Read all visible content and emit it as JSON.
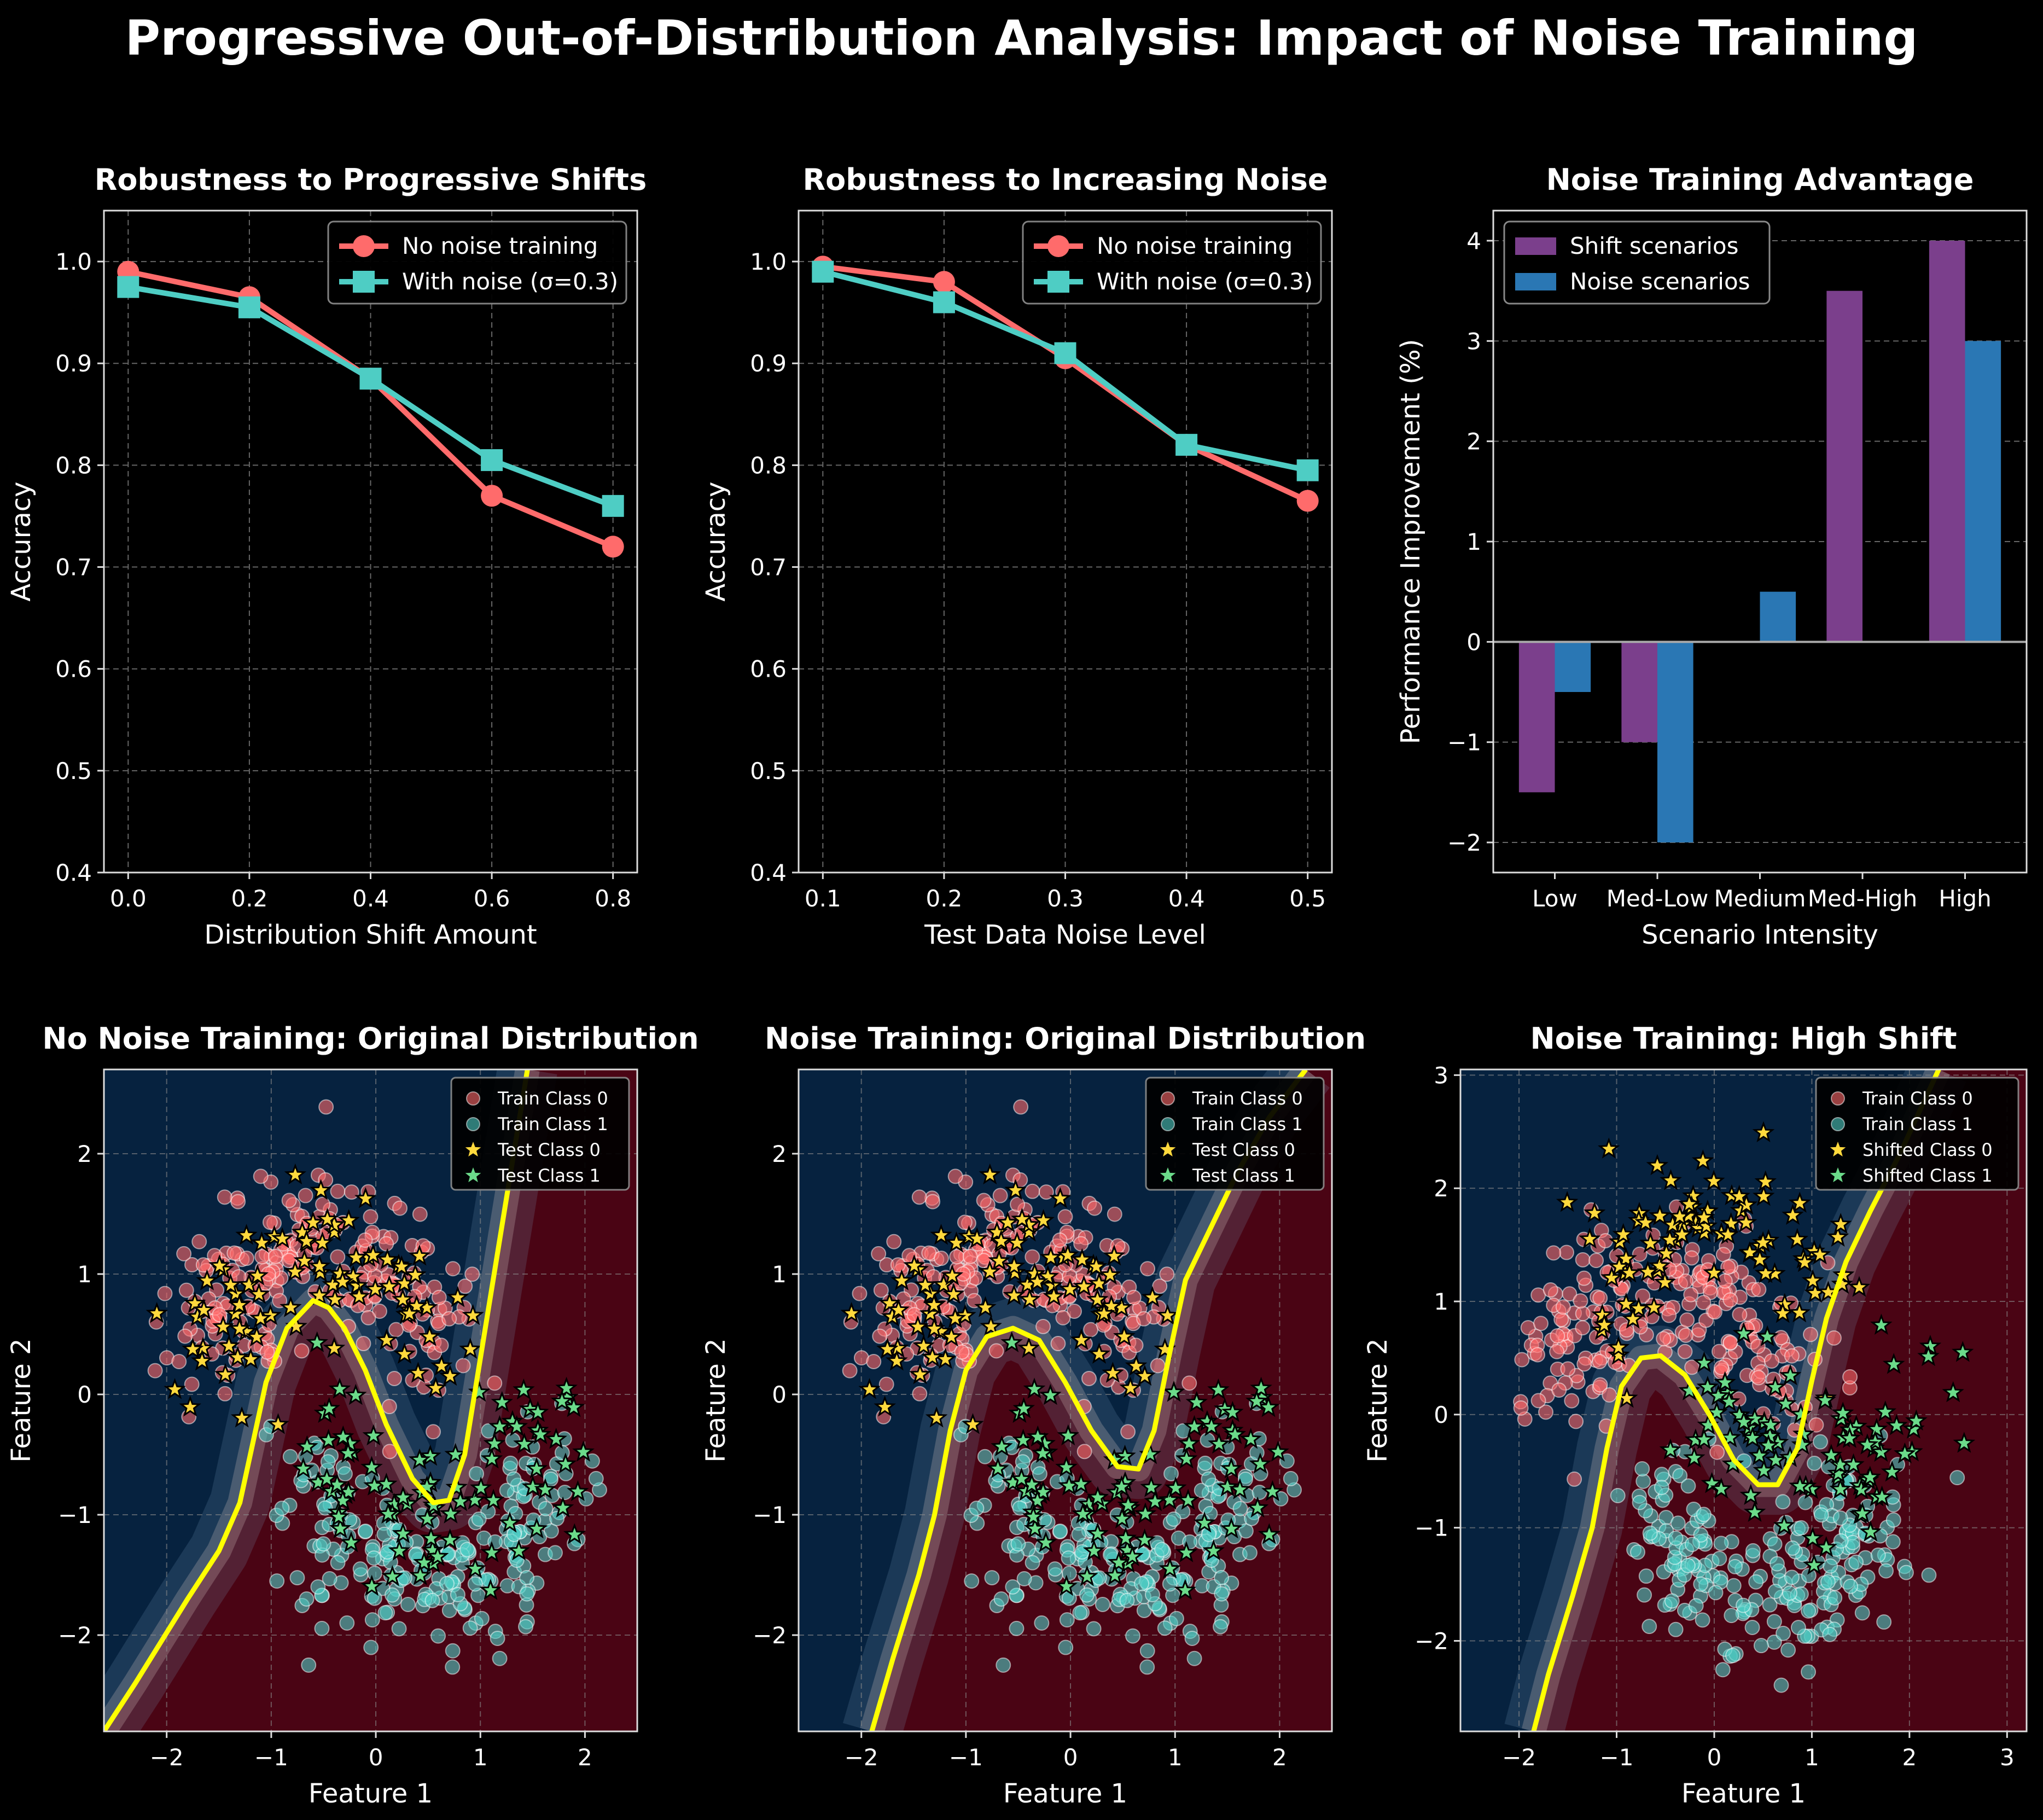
{
  "suptitle": "Progressive Out-of-Distribution Analysis: Impact of Noise Training",
  "colors": {
    "background": "#000000",
    "no_noise": "#ff6b6b",
    "with_noise": "#4ecdc4",
    "shift_bars": "#7b3f8c",
    "noise_bars": "#2a77b4",
    "region_class0": "#06223f",
    "region_class1": "#4a0414",
    "boundary": "#ffff00",
    "test_class0": "#ffd93d",
    "test_class1": "#6bdb8a"
  },
  "chart_data": [
    {
      "type": "line",
      "title": "Robustness to Progressive Shifts",
      "xlabel": "Distribution Shift Amount",
      "ylabel": "Accuracy",
      "xlim": [
        -0.04,
        0.84
      ],
      "ylim": [
        0.4,
        1.05
      ],
      "x_ticks": [
        "0.0",
        "0.2",
        "0.4",
        "0.6",
        "0.8"
      ],
      "y_ticks": [
        "0.4",
        "0.5",
        "0.6",
        "0.7",
        "0.8",
        "0.9",
        "1.0"
      ],
      "grid": true,
      "legend": "top-right",
      "x": [
        0.0,
        0.2,
        0.4,
        0.6,
        0.8
      ],
      "series": [
        {
          "name": "No noise training",
          "marker": "circle",
          "values": [
            0.99,
            0.965,
            0.885,
            0.77,
            0.72
          ]
        },
        {
          "name": "With noise (σ=0.3)",
          "marker": "square",
          "values": [
            0.975,
            0.955,
            0.885,
            0.805,
            0.76
          ]
        }
      ]
    },
    {
      "type": "line",
      "title": "Robustness to Increasing Noise",
      "xlabel": "Test Data Noise Level",
      "ylabel": "Accuracy",
      "xlim": [
        0.08,
        0.52
      ],
      "ylim": [
        0.4,
        1.05
      ],
      "x_ticks": [
        "0.1",
        "0.2",
        "0.3",
        "0.4",
        "0.5"
      ],
      "y_ticks": [
        "0.4",
        "0.5",
        "0.6",
        "0.7",
        "0.8",
        "0.9",
        "1.0"
      ],
      "grid": true,
      "legend": "top-right",
      "x": [
        0.1,
        0.2,
        0.3,
        0.4,
        0.5
      ],
      "series": [
        {
          "name": "No noise training",
          "marker": "circle",
          "values": [
            0.995,
            0.98,
            0.905,
            0.82,
            0.765
          ]
        },
        {
          "name": "With noise (σ=0.3)",
          "marker": "square",
          "values": [
            0.99,
            0.96,
            0.91,
            0.82,
            0.795
          ]
        }
      ]
    },
    {
      "type": "bar",
      "title": "Noise Training Advantage",
      "xlabel": "Scenario Intensity",
      "ylabel": "Performance Improvement (%)",
      "ylim": [
        -2.3,
        4.3
      ],
      "y_ticks": [
        "−2",
        "−1",
        "0",
        "1",
        "2",
        "3",
        "4"
      ],
      "grid": true,
      "legend": "top-left",
      "categories": [
        "Low",
        "Med-Low",
        "Medium",
        "Med-High",
        "High"
      ],
      "series": [
        {
          "name": "Shift scenarios",
          "values": [
            -1.5,
            -1.0,
            0.0,
            3.5,
            4.0
          ]
        },
        {
          "name": "Noise scenarios",
          "values": [
            -0.5,
            -2.0,
            0.5,
            0.0,
            3.0
          ]
        }
      ]
    },
    {
      "type": "scatter",
      "title": "No Noise Training: Original Distribution",
      "xlabel": "Feature 1",
      "ylabel": "Feature 2",
      "xlim": [
        -2.6,
        2.5
      ],
      "ylim": [
        -2.8,
        2.7
      ],
      "x_ticks": [
        "−2",
        "−1",
        "0",
        "1",
        "2"
      ],
      "y_ticks": [
        "−2",
        "−1",
        "0",
        "1",
        "2"
      ],
      "grid": true,
      "legend": "top-right",
      "legend_entries": [
        "Train Class 0",
        "Train Class 1",
        "Test Class 0",
        "Test Class 1"
      ],
      "decision_boundary": [
        [
          -2.6,
          -2.8
        ],
        [
          -2.3,
          -2.4
        ],
        [
          -1.8,
          -1.7
        ],
        [
          -1.5,
          -1.3
        ],
        [
          -1.3,
          -0.9
        ],
        [
          -1.2,
          -0.5
        ],
        [
          -1.05,
          0.1
        ],
        [
          -0.85,
          0.55
        ],
        [
          -0.6,
          0.78
        ],
        [
          -0.45,
          0.72
        ],
        [
          -0.3,
          0.55
        ],
        [
          -0.1,
          0.2
        ],
        [
          0.1,
          -0.25
        ],
        [
          0.35,
          -0.7
        ],
        [
          0.55,
          -0.9
        ],
        [
          0.7,
          -0.88
        ],
        [
          0.85,
          -0.5
        ],
        [
          1.0,
          0.3
        ],
        [
          1.15,
          1.1
        ],
        [
          1.3,
          1.9
        ],
        [
          1.45,
          2.7
        ]
      ]
    },
    {
      "type": "scatter",
      "title": "Noise Training: Original Distribution",
      "xlabel": "Feature 1",
      "ylabel": "Feature 2",
      "xlim": [
        -2.6,
        2.5
      ],
      "ylim": [
        -2.8,
        2.7
      ],
      "x_ticks": [
        "−2",
        "−1",
        "0",
        "1",
        "2"
      ],
      "y_ticks": [
        "−2",
        "−1",
        "0",
        "1",
        "2"
      ],
      "grid": true,
      "legend": "top-right",
      "legend_entries": [
        "Train Class 0",
        "Train Class 1",
        "Test Class 0",
        "Test Class 1"
      ],
      "decision_boundary": [
        [
          -1.9,
          -2.8
        ],
        [
          -1.7,
          -2.2
        ],
        [
          -1.45,
          -1.5
        ],
        [
          -1.3,
          -1.0
        ],
        [
          -1.15,
          -0.3
        ],
        [
          -1.0,
          0.2
        ],
        [
          -0.8,
          0.48
        ],
        [
          -0.55,
          0.55
        ],
        [
          -0.3,
          0.45
        ],
        [
          -0.05,
          0.1
        ],
        [
          0.2,
          -0.3
        ],
        [
          0.45,
          -0.6
        ],
        [
          0.65,
          -0.62
        ],
        [
          0.8,
          -0.3
        ],
        [
          0.95,
          0.35
        ],
        [
          1.1,
          0.95
        ],
        [
          1.35,
          1.4
        ],
        [
          1.6,
          1.85
        ],
        [
          1.9,
          2.3
        ],
        [
          2.25,
          2.7
        ]
      ]
    },
    {
      "type": "scatter",
      "title": "Noise Training: High Shift",
      "xlabel": "Feature 1",
      "ylabel": "Feature 2",
      "xlim": [
        -2.6,
        3.2
      ],
      "ylim": [
        -2.8,
        3.05
      ],
      "x_ticks": [
        "−2",
        "−1",
        "0",
        "1",
        "2",
        "3"
      ],
      "y_ticks": [
        "−2",
        "−1",
        "0",
        "1",
        "2",
        "3"
      ],
      "grid": true,
      "legend": "top-right",
      "legend_entries": [
        "Train Class 0",
        "Train Class 1",
        "Shifted Class 0",
        "Shifted Class 1"
      ],
      "decision_boundary": [
        [
          -1.85,
          -2.8
        ],
        [
          -1.7,
          -2.3
        ],
        [
          -1.45,
          -1.6
        ],
        [
          -1.25,
          -1.0
        ],
        [
          -1.1,
          -0.3
        ],
        [
          -0.95,
          0.25
        ],
        [
          -0.75,
          0.5
        ],
        [
          -0.55,
          0.52
        ],
        [
          -0.3,
          0.35
        ],
        [
          -0.05,
          0.0
        ],
        [
          0.2,
          -0.4
        ],
        [
          0.45,
          -0.62
        ],
        [
          0.65,
          -0.62
        ],
        [
          0.85,
          -0.3
        ],
        [
          1.0,
          0.3
        ],
        [
          1.15,
          0.85
        ],
        [
          1.35,
          1.35
        ],
        [
          1.6,
          1.8
        ],
        [
          1.9,
          2.3
        ],
        [
          2.3,
          3.05
        ]
      ]
    }
  ]
}
